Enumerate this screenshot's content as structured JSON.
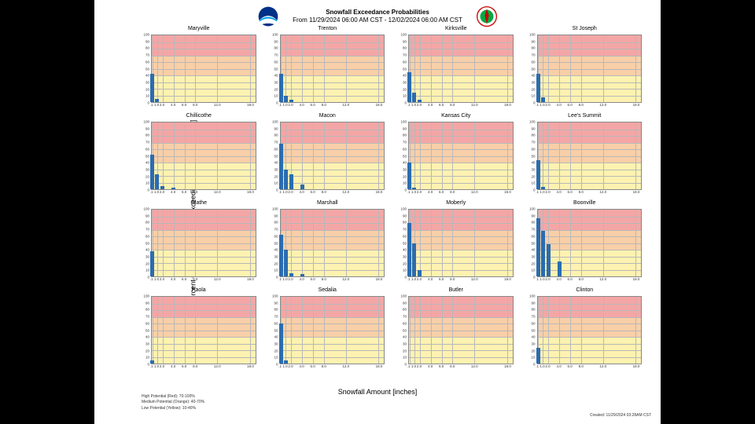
{
  "title": {
    "line1": "Snowfall Exceedance Probabilities",
    "line2": "From 11/29/2024 06:00 AM CST - 12/02/2024 06:00 AM CST"
  },
  "axis_labels": {
    "y": "Percent Chance of Snowfall Exceeding Given Amounts [%]",
    "x": "Snowfall Amount [inches]"
  },
  "legend": {
    "high": "High Potential (Red): 70-100%",
    "medium": "Medium Potential (Orange): 40-70%",
    "low": "Low Potential (Yellow): 10-40%"
  },
  "created": "Created: 11/29/2024 03:28AM CST",
  "colors": {
    "band_red": "#f4a6a6",
    "band_orange": "#f9cfa8",
    "band_yellow": "#fdf2b0",
    "bar": "#2b6cb0",
    "grid": "#b8b8b8"
  },
  "chart": {
    "type": "bar",
    "ylim": [
      0,
      100
    ],
    "ytick_step": 10,
    "x_positions": [
      0.1,
      1.0,
      2.0,
      4.0,
      6.0,
      8.0,
      12.0,
      18.0
    ],
    "x_tick_labels": [
      ".1",
      "1.0",
      "2.0",
      "4.0",
      "6.0",
      "8.0",
      "12.0",
      "18.0"
    ],
    "xlim_visual": [
      0,
      19
    ],
    "bar_width_units": 0.7
  },
  "panels": [
    {
      "title": "Maryville",
      "values": [
        42,
        5,
        0,
        0,
        0,
        0,
        0,
        0
      ]
    },
    {
      "title": "Trenton",
      "values": [
        42,
        10,
        3,
        0,
        0,
        0,
        0,
        0
      ]
    },
    {
      "title": "Kirksville",
      "values": [
        45,
        14,
        3,
        0,
        0,
        0,
        0,
        0
      ]
    },
    {
      "title": "St Joseph",
      "values": [
        42,
        7,
        0,
        0,
        0,
        0,
        0,
        0
      ]
    },
    {
      "title": "Chillicothe",
      "values": [
        52,
        22,
        5,
        2,
        0,
        0,
        0,
        0
      ]
    },
    {
      "title": "Macon",
      "values": [
        68,
        30,
        22,
        7,
        0,
        0,
        0,
        0
      ]
    },
    {
      "title": "Kansas City",
      "values": [
        40,
        2,
        0,
        0,
        0,
        0,
        0,
        0
      ]
    },
    {
      "title": "Lee's Summit",
      "values": [
        44,
        3,
        0,
        0,
        0,
        0,
        0,
        0
      ]
    },
    {
      "title": "Olathe",
      "values": [
        38,
        0,
        0,
        0,
        0,
        0,
        0,
        0
      ]
    },
    {
      "title": "Marshall",
      "values": [
        62,
        40,
        5,
        3,
        0,
        0,
        0,
        0
      ]
    },
    {
      "title": "Moberly",
      "values": [
        80,
        50,
        10,
        0,
        0,
        0,
        0,
        0
      ]
    },
    {
      "title": "Boonville",
      "values": [
        87,
        68,
        48,
        22,
        0,
        0,
        0,
        0
      ]
    },
    {
      "title": "Paola",
      "values": [
        5,
        0,
        0,
        0,
        0,
        0,
        0,
        0
      ]
    },
    {
      "title": "Sedalia",
      "values": [
        60,
        5,
        0,
        0,
        0,
        0,
        0,
        0
      ]
    },
    {
      "title": "Butler",
      "values": [
        0,
        0,
        0,
        0,
        0,
        0,
        0,
        0
      ]
    },
    {
      "title": "Clinton",
      "values": [
        24,
        0,
        0,
        0,
        0,
        0,
        0,
        0
      ]
    }
  ]
}
